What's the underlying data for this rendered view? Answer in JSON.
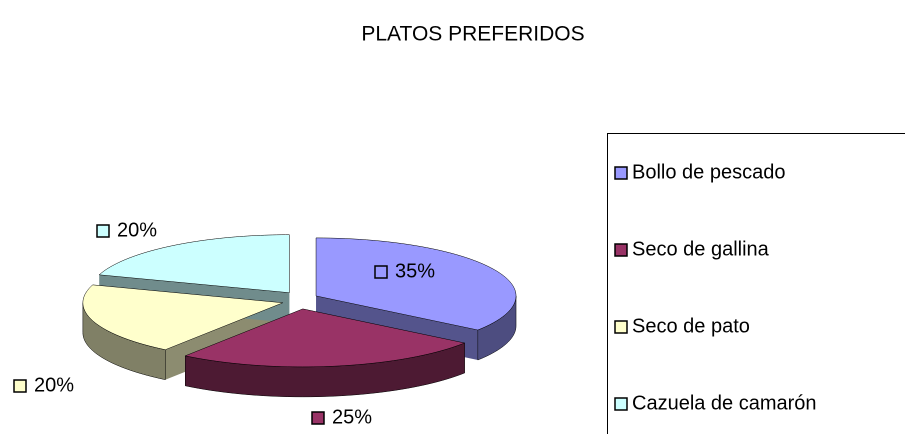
{
  "chart_data": {
    "type": "pie3d",
    "title": "PLATOS PREFERIDOS",
    "categories": [
      "Bollo de pescado",
      "Seco de gallina",
      "Seco de pato",
      "Cazuela de camarón"
    ],
    "values": [
      35,
      25,
      20,
      20
    ],
    "value_labels": [
      "35%",
      "25%",
      "20%",
      "20%"
    ],
    "colors": [
      "#9999ff",
      "#993366",
      "#ffffcc",
      "#ccffff"
    ],
    "legend": "right"
  }
}
